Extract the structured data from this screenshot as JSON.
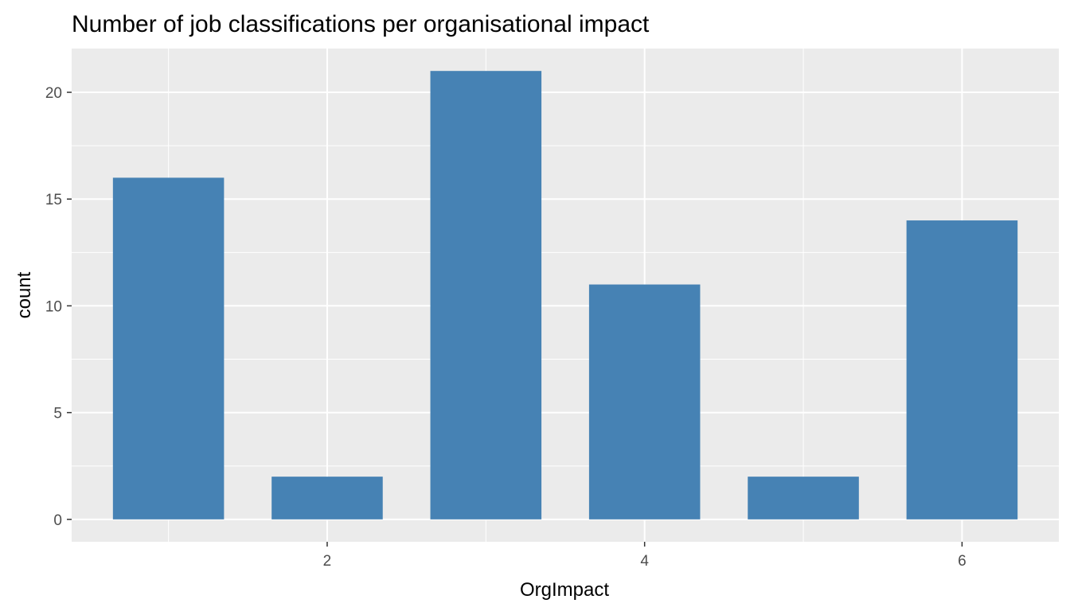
{
  "chart_data": {
    "type": "bar",
    "title": "Number of job classifications per organisational impact",
    "xlabel": "OrgImpact",
    "ylabel": "count",
    "x": [
      1,
      2,
      3,
      4,
      5,
      6
    ],
    "values": [
      16,
      2,
      21,
      11,
      2,
      14
    ],
    "xlim": [
      0.39,
      6.61
    ],
    "ylim": [
      -1.05,
      22.05
    ],
    "x_ticks": [
      2,
      4,
      6
    ],
    "y_ticks": [
      0,
      5,
      10,
      15,
      20
    ],
    "bar_width": 0.7,
    "grid": true,
    "legend": "none",
    "colors": {
      "bar": "#4682B4",
      "panel": "#EBEBEB",
      "grid": "#FFFFFF",
      "tick_text": "#4D4D4D",
      "tick_mark": "#333333"
    }
  }
}
